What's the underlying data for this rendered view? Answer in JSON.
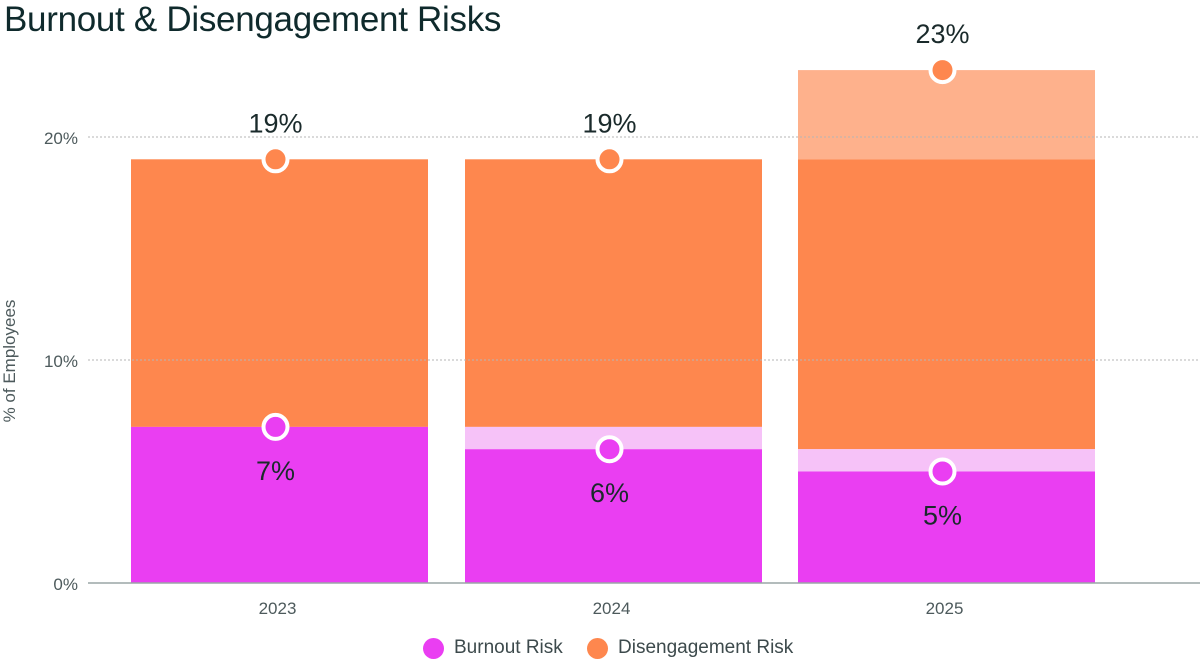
{
  "chart_data": {
    "type": "bar",
    "title": "Burnout & Disengagement Risks",
    "xlabel": "",
    "ylabel": "% of Employees",
    "ylim": [
      0,
      25
    ],
    "yticks": [
      0,
      10,
      20
    ],
    "ytick_labels": [
      "0%",
      "10%",
      "20%"
    ],
    "grid": true,
    "categories": [
      "2023",
      "2024",
      "2025"
    ],
    "series": [
      {
        "name": "Burnout Risk",
        "values": [
          7,
          6,
          5
        ],
        "labels": [
          "7%",
          "6%",
          "5%"
        ],
        "color": "#ea3ef2",
        "prior_color": "#f6c2f8"
      },
      {
        "name": "Disengagement Risk",
        "values": [
          19,
          19,
          23
        ],
        "labels": [
          "19%",
          "19%",
          "23%"
        ],
        "color": "#fe874e",
        "prior_color": "#feb18c"
      }
    ],
    "legend_position": "bottom-center"
  },
  "colors": {
    "title": "#0f2a2c",
    "axis_text": "#4d5a5c",
    "grid": "#b5b5b5",
    "baseline": "#9aa5a6"
  }
}
